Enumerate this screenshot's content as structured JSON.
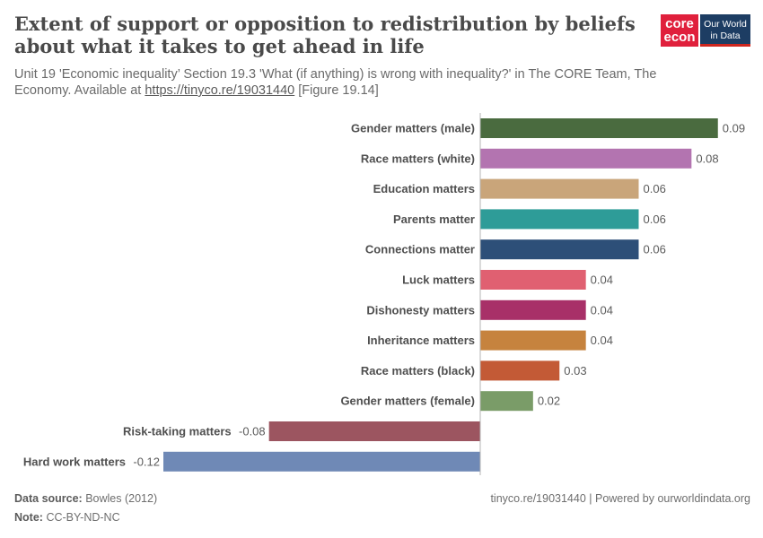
{
  "header": {
    "title": "Extent of support or opposition to redistribution by beliefs about what it takes to get ahead in life",
    "subtitle_pre": "Unit 19 'Economic inequality’ Section 19.3 'What (if anything) is wrong with inequality?' in The CORE Team, The Economy. Available at ",
    "subtitle_link": "https://tinyco.re/19031440",
    "subtitle_post": " [Figure 19.14]"
  },
  "logos": {
    "core_line1": "core",
    "core_line2": "econ",
    "owid_line1": "Our World",
    "owid_line2": "in Data"
  },
  "footer": {
    "source_label": "Data source:",
    "source_value": "Bowles (2012)",
    "note_label": "Note:",
    "note_value": "CC-BY-ND-NC",
    "right_text": "tinyco.re/19031440 | Powered by ourworldindata.org"
  },
  "chart_data": {
    "type": "bar",
    "orientation": "horizontal",
    "title": "Extent of support or opposition to redistribution by beliefs about what it takes to get ahead in life",
    "categories": [
      "Gender matters (male)",
      "Race matters (white)",
      "Education matters",
      "Parents matter",
      "Connections matter",
      "Luck matters",
      "Dishonesty matters",
      "Inheritance matters",
      "Race matters (black)",
      "Gender matters (female)",
      "Risk-taking matters",
      "Hard work matters"
    ],
    "values": [
      0.09,
      0.08,
      0.06,
      0.06,
      0.06,
      0.04,
      0.04,
      0.04,
      0.03,
      0.02,
      -0.08,
      -0.12
    ],
    "value_labels": [
      "0.09",
      "0.08",
      "0.06",
      "0.06",
      "0.06",
      "0.04",
      "0.04",
      "0.04",
      "0.03",
      "0.02",
      "-0.08",
      "-0.12"
    ],
    "colors": [
      "#4a6b3f",
      "#b374b0",
      "#c9a57a",
      "#2e9c98",
      "#2d4f78",
      "#e06071",
      "#a83068",
      "#c6833e",
      "#c35a36",
      "#7a9c68",
      "#9c5560",
      "#6f89b6"
    ],
    "xlim": [
      -0.12,
      0.09
    ],
    "grid": false
  }
}
